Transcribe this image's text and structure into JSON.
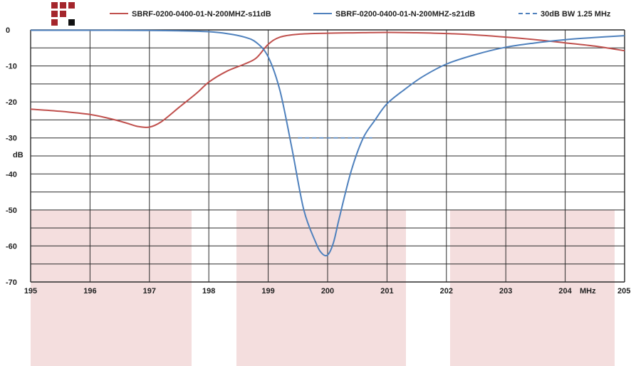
{
  "chart_data": {
    "type": "line",
    "title": "",
    "xlabel": "MHz",
    "ylabel": "dB",
    "xlim": [
      195,
      205
    ],
    "ylim": [
      -70,
      0
    ],
    "grid": true,
    "legend_placement": "top",
    "x_ticks": [
      "195",
      "196",
      "197",
      "198",
      "199",
      "200",
      "201",
      "202",
      "203",
      "204",
      "205"
    ],
    "y_ticks": [
      "0",
      "-10",
      "-20",
      "-30",
      "-40",
      "-50",
      "-60",
      "-70"
    ],
    "series": [
      {
        "name": "SBRF-0200-0400-01-N-200MHZ-s11dB",
        "color": "#c0504d",
        "x": [
          195,
          195.5,
          196,
          196.3,
          196.6,
          196.8,
          197,
          197.2,
          197.5,
          197.8,
          198,
          198.3,
          198.6,
          198.8,
          199,
          199.2,
          199.5,
          200,
          200.5,
          201,
          201.5,
          202,
          202.5,
          203,
          203.5,
          204,
          204.5,
          205
        ],
        "values": [
          -22,
          -22.6,
          -23.5,
          -24.5,
          -25.8,
          -26.8,
          -27,
          -25.5,
          -21.5,
          -17.5,
          -14.5,
          -11.5,
          -9.5,
          -7.8,
          -4,
          -2,
          -1.2,
          -0.9,
          -0.8,
          -0.7,
          -0.8,
          -1,
          -1.4,
          -2,
          -2.7,
          -3.6,
          -4.5,
          -5.8
        ]
      },
      {
        "name": "SBRF-0200-0400-01-N-200MHZ-s21dB",
        "color": "#4f81bd",
        "x": [
          195,
          196,
          197,
          197.5,
          198,
          198.3,
          198.6,
          198.8,
          199,
          199.2,
          199.4,
          199.6,
          199.8,
          199.9,
          200,
          200.1,
          200.2,
          200.4,
          200.6,
          200.8,
          201,
          201.3,
          201.6,
          202,
          202.5,
          203,
          203.5,
          204,
          204.5,
          205
        ],
        "values": [
          -0.1,
          -0.1,
          -0.15,
          -0.25,
          -0.5,
          -1,
          -2,
          -3.5,
          -7.5,
          -17,
          -33,
          -50,
          -59,
          -62,
          -62.5,
          -59,
          -52,
          -39,
          -30,
          -25,
          -20.5,
          -16.5,
          -13,
          -9.5,
          -6.8,
          -4.8,
          -3.6,
          -2.7,
          -2.1,
          -1.6
        ]
      },
      {
        "name": "30dB BW 1.25 MHz",
        "color": "#4f81bd",
        "dashed": true,
        "x": [
          199.5,
          200.75
        ],
        "values": [
          -30,
          -30
        ]
      }
    ]
  },
  "colors": {
    "grid": "#2b2b2b",
    "background_blocks": "#f4dede",
    "logo_dark_red": "#a4262c",
    "logo_black": "#111111"
  }
}
